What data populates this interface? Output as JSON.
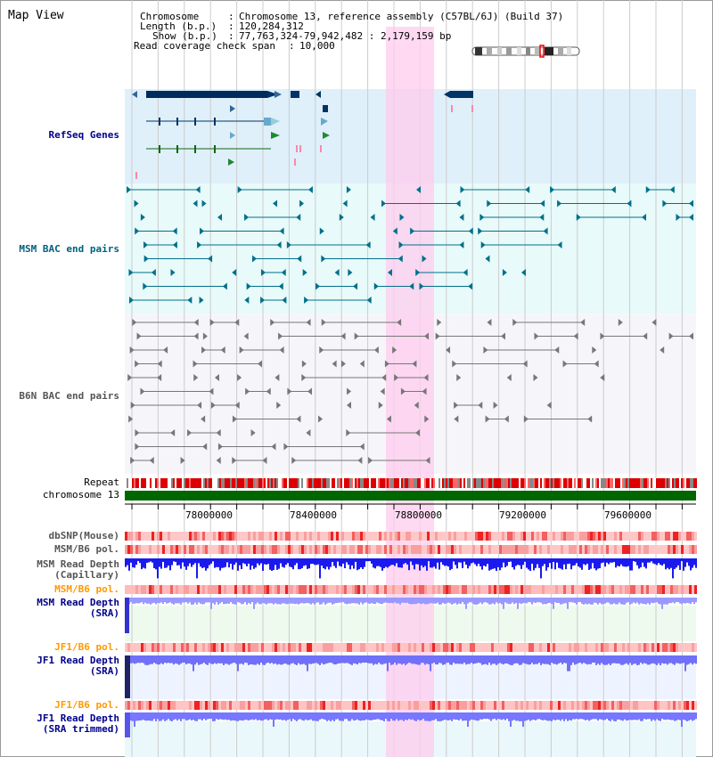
{
  "header": {
    "title": "Map View",
    "rows": [
      {
        "key": "Chromosome",
        "value": "Chromosome 13, reference assembly (C57BL/6J) (Build 37)"
      },
      {
        "key": "Length (b.p.)",
        "value": "120,284,312"
      },
      {
        "key": "Show (b.p.)",
        "value": "77,763,324-79,942,482 : 2,179,159 bp"
      },
      {
        "key": "Read coverage check span",
        "value": "10,000"
      }
    ]
  },
  "tracks": {
    "refseq": "RefSeq Genes",
    "msm_bac": "MSM BAC end pairs",
    "b6n_bac": "B6N BAC end pairs",
    "repeat": "Repeat",
    "chromosome": "chromosome 13",
    "dbsnp": "dbSNP(Mouse)",
    "msm_pol": "MSM/B6 pol.",
    "msm_depth_cap_1": "MSM Read Depth",
    "msm_depth_cap_2": "(Capillary)",
    "msm_pol_sra": "MSM/B6 pol.",
    "msm_depth_sra_1": "MSM Read Depth",
    "msm_depth_sra_2": "(SRA)",
    "jf1_pol_1": "JF1/B6 pol.",
    "jf1_depth_1": "JF1 Read Depth",
    "jf1_depth_1b": "(SRA)",
    "jf1_pol_2": "JF1/B6 pol.",
    "jf1_depth_2": "JF1 Read Depth",
    "jf1_depth_2b": "(SRA trimmed)"
  },
  "axis": {
    "ticks": [
      "78000000",
      "78400000",
      "78800000",
      "79200000",
      "79600000"
    ]
  },
  "colors": {
    "refseq_label": "#00008b",
    "msm_label": "#006080",
    "b6n_label": "#555555",
    "sra_label": "#00008b",
    "jf1_pol_label": "#ff9900",
    "highlight": "#ffccee",
    "chromosome_bar": "#006600"
  }
}
